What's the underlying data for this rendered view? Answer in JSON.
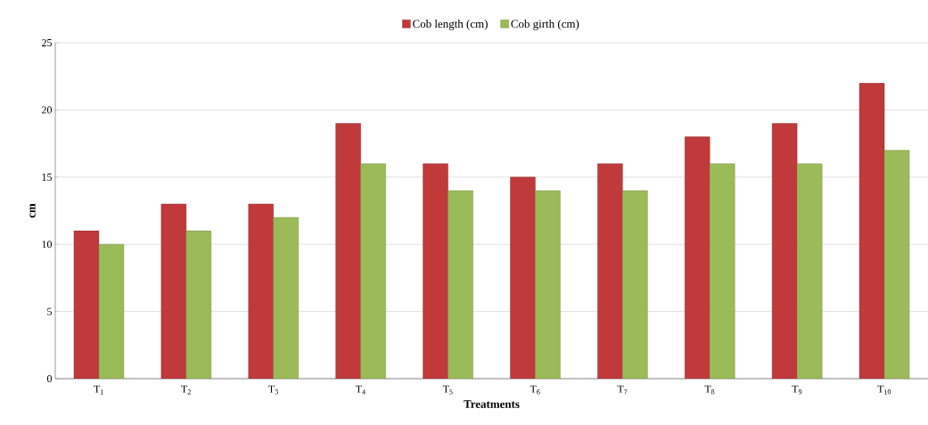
{
  "chart_data": {
    "type": "bar",
    "xlabel": "Treatments",
    "ylabel": "cm",
    "categories": [
      "T$_{1}$",
      "T$_{2}$",
      "T$_{3}$",
      "T$_{4}$",
      "T$_{5}$",
      "T$_{6}$",
      "T$_{7}$",
      "T$_{8}$",
      "T$_{9}$",
      "T$_{10}$"
    ],
    "series": [
      {
        "name": "Cob length (cm)",
        "color": "#c0393b",
        "values": [
          11,
          13,
          13,
          19,
          16,
          15,
          16,
          18,
          19,
          22
        ]
      },
      {
        "name": "Cob girth (cm)",
        "color": "#9bbb59",
        "values": [
          10,
          11,
          12,
          16,
          14,
          14,
          14,
          16,
          16,
          17
        ]
      }
    ],
    "ylim": [
      0,
      25
    ],
    "yticks": [
      0,
      5,
      10,
      15,
      20,
      25
    ],
    "grid": "y",
    "legend": "top"
  }
}
